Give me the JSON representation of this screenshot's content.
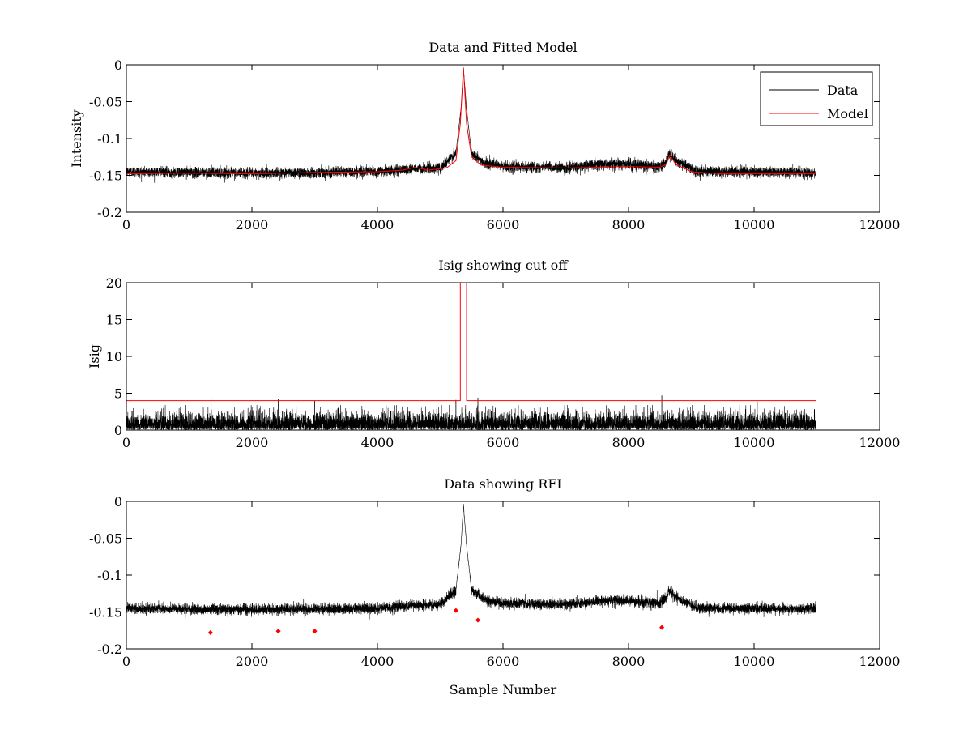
{
  "chart_data": [
    {
      "type": "line",
      "title": "Data and Fitted Model",
      "xlabel": "",
      "ylabel": "Intensity",
      "xlim": [
        0,
        12000
      ],
      "ylim": [
        -0.2,
        0
      ],
      "xticks": [
        0,
        2000,
        4000,
        6000,
        8000,
        10000,
        12000
      ],
      "xtick_labels": [
        "0",
        "2000",
        "4000",
        "6000",
        "8000",
        "10000",
        "12000"
      ],
      "yticks": [
        -0.2,
        -0.15,
        -0.1,
        -0.05,
        0
      ],
      "ytick_labels": [
        "-0.2",
        "-0.15",
        "-0.1",
        "-0.05",
        "0"
      ],
      "legend_position": "top-right",
      "series": [
        {
          "name": "Data",
          "color": "#000000",
          "kind": "noisy",
          "x_range": [
            0,
            10990
          ],
          "noise_amplitude": 0.007,
          "baseline": [
            [
              0,
              -0.145
            ],
            [
              2000,
              -0.147
            ],
            [
              4000,
              -0.145
            ],
            [
              4600,
              -0.141
            ],
            [
              5000,
              -0.14
            ],
            [
              5250,
              -0.12
            ],
            [
              5330,
              -0.06
            ],
            [
              5370,
              -0.005
            ],
            [
              5420,
              -0.06
            ],
            [
              5500,
              -0.12
            ],
            [
              5700,
              -0.133
            ],
            [
              6000,
              -0.138
            ],
            [
              7000,
              -0.14
            ],
            [
              7700,
              -0.134
            ],
            [
              8000,
              -0.135
            ],
            [
              8500,
              -0.138
            ],
            [
              8600,
              -0.132
            ],
            [
              8650,
              -0.12
            ],
            [
              8750,
              -0.13
            ],
            [
              9100,
              -0.145
            ],
            [
              10990,
              -0.146
            ]
          ]
        },
        {
          "name": "Model",
          "color": "#ff0000",
          "kind": "line",
          "points": [
            [
              0,
              -0.148
            ],
            [
              1000,
              -0.147
            ],
            [
              2000,
              -0.148
            ],
            [
              3000,
              -0.146
            ],
            [
              4000,
              -0.145
            ],
            [
              4400,
              -0.143
            ],
            [
              4600,
              -0.139
            ],
            [
              4800,
              -0.143
            ],
            [
              5100,
              -0.14
            ],
            [
              5250,
              -0.13
            ],
            [
              5320,
              -0.08
            ],
            [
              5370,
              -0.005
            ],
            [
              5420,
              -0.08
            ],
            [
              5500,
              -0.125
            ],
            [
              5650,
              -0.136
            ],
            [
              6000,
              -0.139
            ],
            [
              7000,
              -0.14
            ],
            [
              8000,
              -0.138
            ],
            [
              8500,
              -0.139
            ],
            [
              8600,
              -0.135
            ],
            [
              8660,
              -0.122
            ],
            [
              8750,
              -0.135
            ],
            [
              9000,
              -0.145
            ],
            [
              9500,
              -0.148
            ],
            [
              10990,
              -0.148
            ]
          ]
        }
      ]
    },
    {
      "type": "line",
      "title": "Isig showing cut off",
      "xlabel": "",
      "ylabel": "Isig",
      "xlim": [
        0,
        12000
      ],
      "ylim": [
        0,
        20
      ],
      "xticks": [
        0,
        2000,
        4000,
        6000,
        8000,
        10000,
        12000
      ],
      "xtick_labels": [
        "0",
        "2000",
        "4000",
        "6000",
        "8000",
        "10000",
        "12000"
      ],
      "yticks": [
        0,
        5,
        10,
        15,
        20
      ],
      "ytick_labels": [
        "0",
        "5",
        "10",
        "15",
        "20"
      ],
      "series": [
        {
          "color": "#000000",
          "kind": "noise-positive",
          "x_range": [
            0,
            10990
          ],
          "noise_amplitude": 1.6,
          "spikes": [
            [
              1350,
              4.5
            ],
            [
              2420,
              4.2
            ],
            [
              3000,
              4.0
            ],
            [
              5250,
              4.1
            ],
            [
              5600,
              4.4
            ],
            [
              8530,
              4.7
            ],
            [
              10050,
              3.9
            ]
          ]
        },
        {
          "color": "#ff0000",
          "kind": "line",
          "points": [
            [
              0,
              4
            ],
            [
              5320,
              4
            ],
            [
              5320,
              20
            ],
            [
              5420,
              20
            ],
            [
              5420,
              4
            ],
            [
              10990,
              4
            ]
          ]
        }
      ]
    },
    {
      "type": "scatter",
      "title": "Data showing RFI",
      "xlabel": "Sample Number",
      "ylabel": "",
      "xlim": [
        0,
        12000
      ],
      "ylim": [
        -0.2,
        0
      ],
      "xticks": [
        0,
        2000,
        4000,
        6000,
        8000,
        10000,
        12000
      ],
      "xtick_labels": [
        "0",
        "2000",
        "4000",
        "6000",
        "8000",
        "10000",
        "12000"
      ],
      "yticks": [
        -0.2,
        -0.15,
        -0.1,
        -0.05,
        0
      ],
      "ytick_labels": [
        "-0.2",
        "-0.15",
        "-0.1",
        "-0.05",
        "0"
      ],
      "series": [
        {
          "color": "#000000",
          "kind": "noisy",
          "x_range": [
            0,
            10990
          ],
          "noise_amplitude": 0.007,
          "baseline": [
            [
              0,
              -0.145
            ],
            [
              2000,
              -0.147
            ],
            [
              4000,
              -0.145
            ],
            [
              4600,
              -0.141
            ],
            [
              5000,
              -0.14
            ],
            [
              5250,
              -0.12
            ],
            [
              5330,
              -0.06
            ],
            [
              5370,
              -0.005
            ],
            [
              5420,
              -0.06
            ],
            [
              5500,
              -0.12
            ],
            [
              5700,
              -0.133
            ],
            [
              6000,
              -0.138
            ],
            [
              7000,
              -0.14
            ],
            [
              7700,
              -0.134
            ],
            [
              8000,
              -0.135
            ],
            [
              8500,
              -0.138
            ],
            [
              8600,
              -0.132
            ],
            [
              8650,
              -0.12
            ],
            [
              8750,
              -0.13
            ],
            [
              9100,
              -0.145
            ],
            [
              10990,
              -0.146
            ]
          ]
        },
        {
          "color": "#ff0000",
          "kind": "points",
          "x": [
            1340,
            2420,
            3000,
            5250,
            5600,
            8530
          ],
          "y": [
            -0.178,
            -0.176,
            -0.176,
            -0.148,
            -0.161,
            -0.171
          ]
        }
      ]
    }
  ]
}
